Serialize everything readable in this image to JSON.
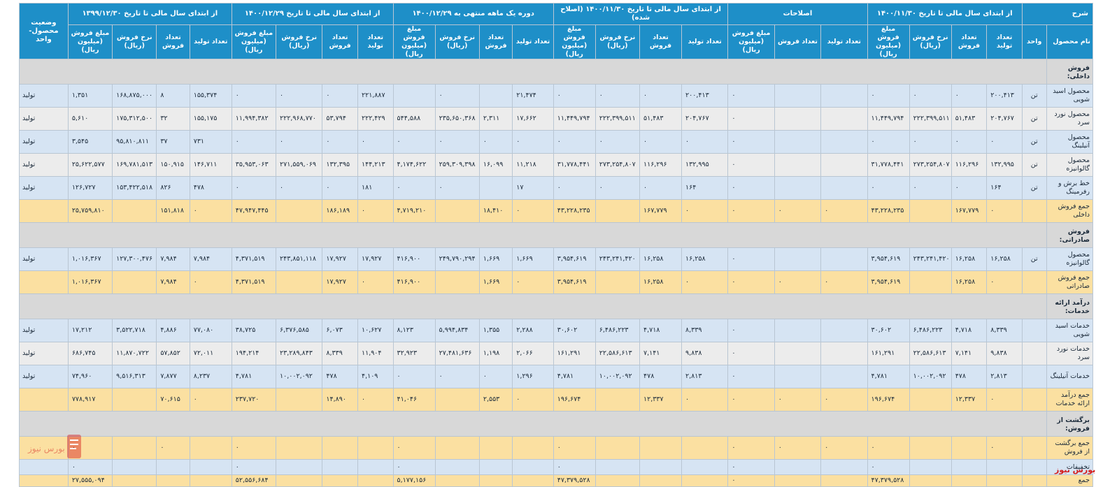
{
  "headers": {
    "desc": "شرح",
    "groups": [
      "از ابتدای سال مالی تا تاریخ ۱۴۰۰/۱۱/۳۰",
      "اصلاحات",
      "از ابتدای سال مالی تا تاریخ ۱۴۰۰/۱۱/۳۰ (اصلاح شده)",
      "دوره یک ماهه منتهی به ۱۴۰۰/۱۲/۲۹",
      "از ابتدای سال مالی تا تاریخ ۱۴۰۰/۱۲/۲۹",
      "از ابتدای سال مالی تا تاریخ ۱۳۹۹/۱۲/۳۰"
    ],
    "status": "وضعیت محصول-واحد",
    "name": "نام محصول",
    "unit": "واحد",
    "sub": {
      "prod": "تعداد تولید",
      "sales": "تعداد فروش",
      "rate": "نرخ فروش (ریال)",
      "amount": "مبلغ فروش (میلیون ریال)"
    }
  },
  "rows": [
    {
      "type": "section",
      "label": "فروش داخلی:"
    },
    {
      "type": "blue",
      "label": "محصول اسید شویی",
      "unit": "تن",
      "status": "تولید",
      "cells": [
        "۲۰۰,۴۱۳",
        "۰",
        "۰",
        "۰",
        "",
        "",
        "۰",
        "۲۰۰,۴۱۳",
        "۰",
        "۰",
        "۰",
        "۲۱,۴۷۴",
        "",
        "۰",
        "",
        "۲۲۱,۸۸۷",
        "۰",
        "۰",
        "۰",
        "۱۵۵,۳۷۴",
        "۸",
        "۱۶۸,۸۷۵,۰۰۰",
        "۱,۳۵۱"
      ]
    },
    {
      "type": "grey",
      "label": "محصول نورد سرد",
      "unit": "تن",
      "status": "تولید",
      "cells": [
        "۲۰۴,۷۶۷",
        "۵۱,۴۸۳",
        "۲۲۲,۳۹۹,۵۱۱",
        "۱۱,۴۴۹,۷۹۴",
        "",
        "",
        "۰",
        "۲۰۴,۷۶۷",
        "۵۱,۴۸۳",
        "۲۲۲,۳۹۹,۵۱۱",
        "۱۱,۴۴۹,۷۹۴",
        "۱۷,۶۶۲",
        "۲,۳۱۱",
        "۲۳۵,۶۵۰,۳۶۸",
        "۵۴۴,۵۸۸",
        "۲۲۲,۴۲۹",
        "۵۳,۷۹۴",
        "۲۲۲,۹۶۸,۷۷۰",
        "۱۱,۹۹۴,۳۸۲",
        "۱۵۵,۱۷۵",
        "۳۲",
        "۱۷۵,۳۱۲,۵۰۰",
        "۵,۶۱۰"
      ]
    },
    {
      "type": "blue",
      "label": "محصول آنیلینگ",
      "unit": "تن",
      "status": "تولید",
      "cells": [
        "۰",
        "۰",
        "۰",
        "۰",
        "",
        "",
        "۰",
        "۰",
        "۰",
        "۰",
        "۰",
        "۰",
        "۰",
        "۰",
        "۰",
        "۰",
        "۰",
        "۰",
        "۰",
        "۷۳۱",
        "۳۷",
        "۹۵,۸۱۰,۸۱۱",
        "۳,۵۴۵"
      ]
    },
    {
      "type": "grey",
      "label": "محصول گالوانیزه",
      "unit": "تن",
      "status": "تولید",
      "cells": [
        "۱۳۲,۹۹۵",
        "۱۱۶,۲۹۶",
        "۲۷۳,۲۵۴,۸۰۷",
        "۳۱,۷۷۸,۴۴۱",
        "",
        "",
        "۰",
        "۱۳۲,۹۹۵",
        "۱۱۶,۲۹۶",
        "۲۷۳,۲۵۴,۸۰۷",
        "۳۱,۷۷۸,۴۴۱",
        "۱۱,۲۱۸",
        "۱۶,۰۹۹",
        "۲۵۹,۳۰۹,۳۹۸",
        "۴,۱۷۴,۶۲۲",
        "۱۴۴,۲۱۳",
        "۱۳۲,۳۹۵",
        "۲۷۱,۵۵۹,۰۶۹",
        "۳۵,۹۵۳,۰۶۳",
        "۱۴۶,۷۱۱",
        "۱۵۰,۹۱۵",
        "۱۶۹,۷۸۱,۵۱۳",
        "۲۵,۶۲۲,۵۷۷"
      ]
    },
    {
      "type": "blue",
      "label": "خط برش و رفرمینگ",
      "unit": "تن",
      "status": "تولید",
      "cells": [
        "۱۶۴",
        "۰",
        "۰",
        "۰",
        "",
        "",
        "۰",
        "۱۶۴",
        "۰",
        "۰",
        "۰",
        "۱۷",
        "",
        "۰",
        "۰",
        "۱۸۱",
        "۰",
        "۰",
        "۰",
        "۴۷۸",
        "۸۲۶",
        "۱۵۳,۴۲۲,۵۱۸",
        "۱۲۶,۷۲۷"
      ]
    },
    {
      "type": "total",
      "label": "جمع فروش داخلی",
      "unit": "",
      "status": "",
      "cells": [
        "۰",
        "۱۶۷,۷۷۹",
        "",
        "۴۳,۲۲۸,۲۳۵",
        "۰",
        "۰",
        "۰",
        "۰",
        "۱۶۷,۷۷۹",
        "",
        "۴۳,۲۲۸,۲۳۵",
        "۰",
        "۱۸,۴۱۰",
        "",
        "۴,۷۱۹,۲۱۰",
        "۰",
        "۱۸۶,۱۸۹",
        "",
        "۴۷,۹۴۷,۴۴۵",
        "۰",
        "۱۵۱,۸۱۸",
        "",
        "۲۵,۷۵۹,۸۱۰"
      ]
    },
    {
      "type": "section",
      "label": "فروش صادراتی:"
    },
    {
      "type": "blue",
      "label": "محصول گالوانیزه",
      "unit": "تن",
      "status": "تولید",
      "cells": [
        "۱۶,۲۵۸",
        "۱۶,۲۵۸",
        "۲۴۳,۲۴۱,۴۲۰",
        "۳,۹۵۴,۶۱۹",
        "",
        "",
        "۰",
        "۱۶,۲۵۸",
        "۱۶,۲۵۸",
        "۲۴۳,۲۴۱,۴۲۰",
        "۳,۹۵۴,۶۱۹",
        "۱,۶۶۹",
        "۱,۶۶۹",
        "۲۴۹,۷۹۰,۲۹۴",
        "۴۱۶,۹۰۰",
        "۱۷,۹۲۷",
        "۱۷,۹۲۷",
        "۲۴۳,۸۵۱,۱۱۸",
        "۴,۳۷۱,۵۱۹",
        "۷,۹۸۴",
        "۷,۹۸۴",
        "۱۲۷,۳۰۰,۴۷۶",
        "۱,۰۱۶,۳۶۷"
      ]
    },
    {
      "type": "total",
      "label": "جمع فروش صادراتی",
      "unit": "",
      "status": "",
      "cells": [
        "۰",
        "۱۶,۲۵۸",
        "",
        "۳,۹۵۴,۶۱۹",
        "۰",
        "۰",
        "۰",
        "۰",
        "۱۶,۲۵۸",
        "",
        "۳,۹۵۴,۶۱۹",
        "۰",
        "۱,۶۶۹",
        "",
        "۴۱۶,۹۰۰",
        "۰",
        "۱۷,۹۲۷",
        "",
        "۴,۳۷۱,۵۱۹",
        "۰",
        "۷,۹۸۴",
        "",
        "۱,۰۱۶,۳۶۷"
      ]
    },
    {
      "type": "section",
      "label": "درآمد ارائه خدمات:"
    },
    {
      "type": "blue",
      "label": "خدمات اسید شویی",
      "unit": "",
      "status": "تولید",
      "cells": [
        "۸,۳۳۹",
        "۴,۷۱۸",
        "۶,۴۸۶,۲۲۳",
        "۳۰,۶۰۲",
        "",
        "",
        "۰",
        "۸,۳۳۹",
        "۴,۷۱۸",
        "۶,۴۸۶,۲۲۳",
        "۳۰,۶۰۲",
        "۲,۲۸۸",
        "۱,۳۵۵",
        "۵,۹۹۴,۸۳۴",
        "۸,۱۲۳",
        "۱۰,۶۲۷",
        "۶,۰۷۳",
        "۶,۳۷۶,۵۸۵",
        "۳۸,۷۲۵",
        "۷۷,۰۸۰",
        "۴,۸۸۶",
        "۳,۵۲۲,۷۱۸",
        "۱۷,۲۱۲"
      ]
    },
    {
      "type": "grey",
      "label": "خدمات نورد سرد",
      "unit": "",
      "status": "تولید",
      "cells": [
        "۹,۸۳۸",
        "۷,۱۴۱",
        "۲۲,۵۸۶,۶۱۳",
        "۱۶۱,۲۹۱",
        "",
        "",
        "۰",
        "۹,۸۳۸",
        "۷,۱۴۱",
        "۲۲,۵۸۶,۶۱۳",
        "۱۶۱,۲۹۱",
        "۲,۰۶۶",
        "۱,۱۹۸",
        "۲۷,۴۸۱,۶۳۶",
        "۳۲,۹۲۳",
        "۱۱,۹۰۴",
        "۸,۳۳۹",
        "۲۳,۲۸۹,۸۴۳",
        "۱۹۴,۲۱۴",
        "۷۲,۰۱۱",
        "۵۷,۸۵۲",
        "۱۱,۸۷۰,۷۲۲",
        "۶۸۶,۷۴۵"
      ]
    },
    {
      "type": "blue",
      "label": "خدمات آنیلینگ",
      "unit": "",
      "status": "تولید",
      "cells": [
        "۲,۸۱۳",
        "۴۷۸",
        "۱۰,۰۰۲,۰۹۲",
        "۴,۷۸۱",
        "",
        "",
        "۰",
        "۲,۸۱۳",
        "۴۷۸",
        "۱۰,۰۰۲,۰۹۲",
        "۴,۷۸۱",
        "۱,۲۹۶",
        "۰",
        "۰",
        "۰",
        "۴,۱۰۹",
        "۴۷۸",
        "۱۰,۰۰۲,۰۹۲",
        "۴,۷۸۱",
        "۸,۲۳۷",
        "۷,۸۷۷",
        "۹,۵۱۶,۳۱۳",
        "۷۴,۹۶۰"
      ]
    },
    {
      "type": "total",
      "label": "جمع درآمد ارائه خدمات",
      "unit": "",
      "status": "",
      "cells": [
        "۰",
        "۱۲,۳۳۷",
        "",
        "۱۹۶,۶۷۴",
        "۰",
        "۰",
        "۰",
        "۰",
        "۱۲,۳۳۷",
        "",
        "۱۹۶,۶۷۴",
        "۰",
        "۲,۵۵۳",
        "",
        "۴۱,۰۴۶",
        "۰",
        "۱۴,۸۹۰",
        "",
        "۲۳۷,۷۲۰",
        "۰",
        "۷۰,۶۱۵",
        "",
        "۷۷۸,۹۱۷"
      ]
    },
    {
      "type": "section",
      "label": "برگشت از فروش:"
    },
    {
      "type": "total",
      "label": "جمع برگشت از فروش",
      "unit": "",
      "status": "",
      "cells": [
        "۰",
        "",
        "",
        "۰",
        "۰",
        "۰",
        "۰",
        "",
        "",
        "",
        "۰",
        "",
        "",
        "",
        "۰",
        "",
        "",
        "",
        "۰",
        "",
        "۰",
        "",
        "۰"
      ]
    },
    {
      "type": "blue",
      "short": true,
      "label": "تخفیفات",
      "unit": "",
      "status": "",
      "cells": [
        "",
        "",
        "",
        "۰",
        "",
        "",
        "۰",
        "",
        "",
        "",
        "۰",
        "",
        "",
        "",
        "۰",
        "",
        "",
        "",
        "۰",
        "",
        "",
        "",
        "۰"
      ]
    },
    {
      "type": "total",
      "last": true,
      "label": "جمع",
      "unit": "",
      "status": "",
      "cells": [
        "",
        "",
        "",
        "۴۷,۳۷۹,۵۲۸",
        "",
        "",
        "۰",
        "",
        "",
        "",
        "۴۷,۳۷۹,۵۲۸",
        "",
        "",
        "",
        "۵,۱۷۷,۱۵۶",
        "",
        "",
        "",
        "۵۲,۵۵۶,۶۸۴",
        "",
        "",
        "",
        "۲۷,۵۵۵,۰۹۴"
      ]
    }
  ],
  "watermark": {
    "brand": "بورس نیوز"
  },
  "colors": {
    "header": "#1e8fc8",
    "row_blue": "#d6e4f3",
    "row_grey": "#ececec",
    "row_total": "#fbe0a1",
    "row_section": "#d8d8d8",
    "brand_red": "#d41b1b"
  }
}
